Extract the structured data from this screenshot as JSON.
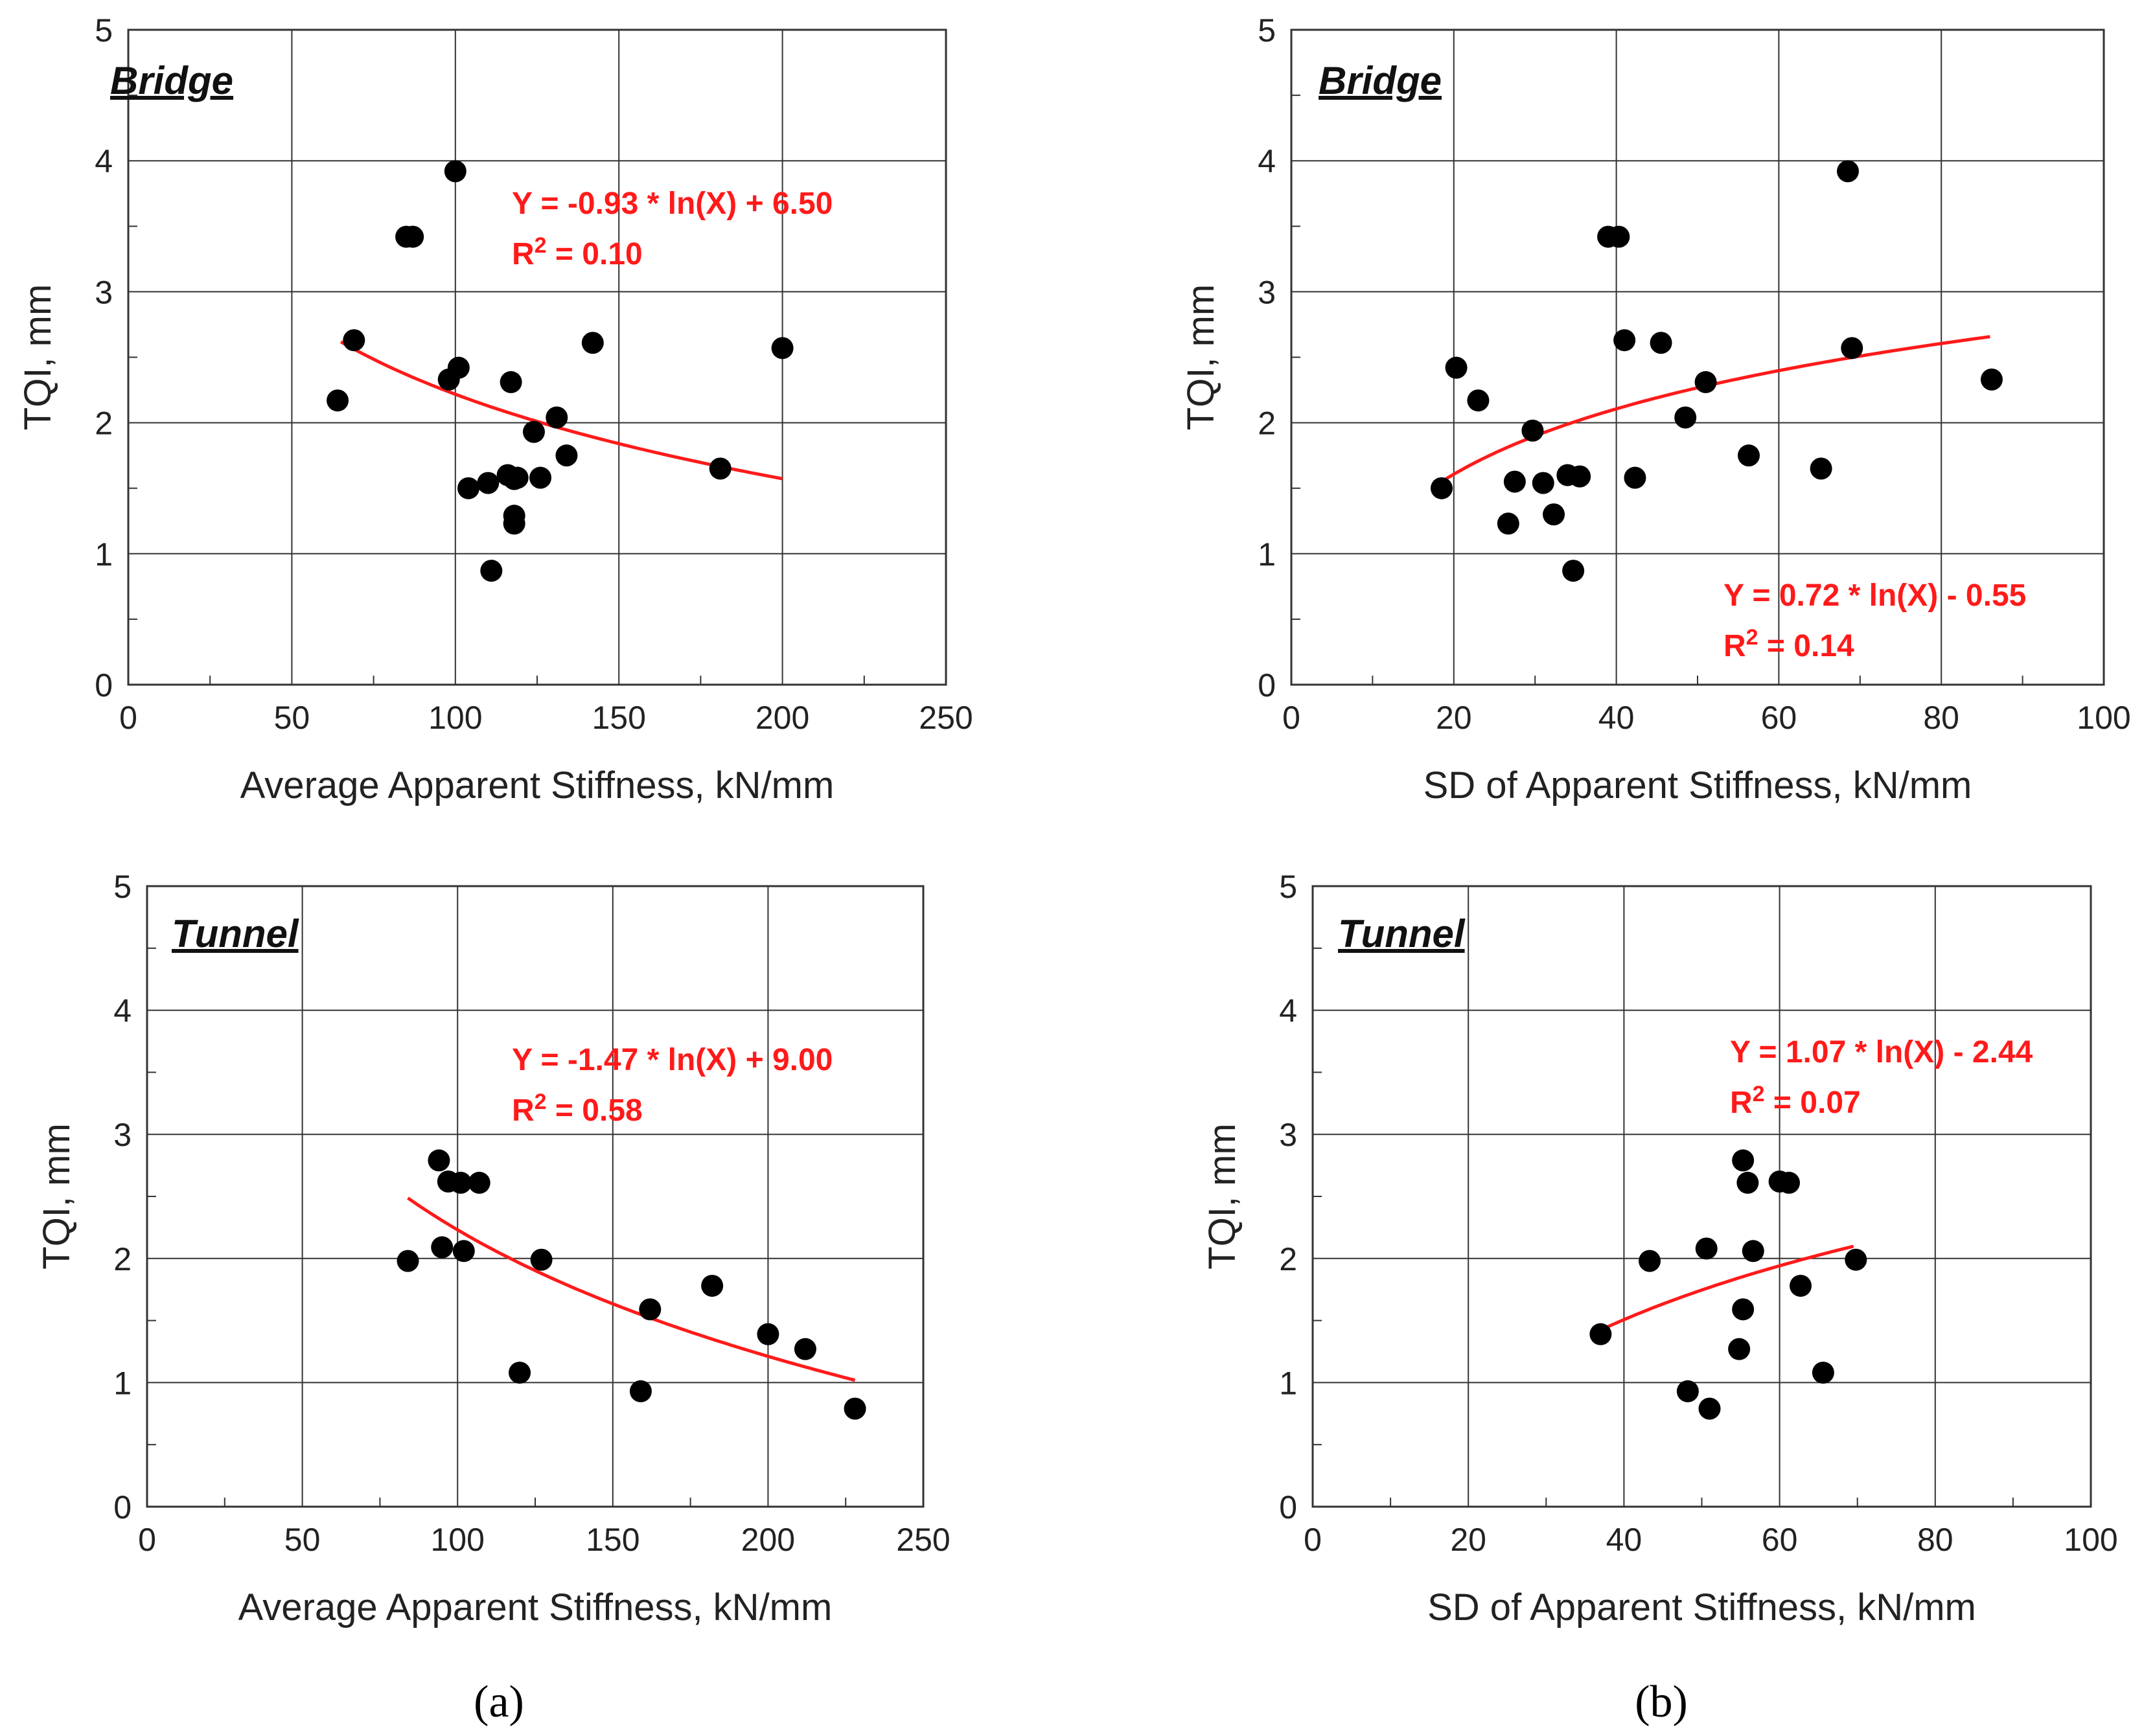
{
  "captions": [
    "(a)",
    "(b)"
  ],
  "chart_data": [
    {
      "type": "scatter",
      "title": "Bridge",
      "xlabel": "Average Apparent Stiffness, kN/mm",
      "ylabel": "TQI, mm",
      "xlim": [
        0,
        250
      ],
      "ylim": [
        0,
        5
      ],
      "xticks": [
        0,
        50,
        100,
        150,
        200,
        250
      ],
      "yticks": [
        0,
        1,
        2,
        3,
        4,
        5
      ],
      "grid": true,
      "points": [
        [
          64,
          2.17
        ],
        [
          69,
          2.63
        ],
        [
          85,
          3.42
        ],
        [
          87,
          3.42
        ],
        [
          98,
          2.33
        ],
        [
          100,
          3.92
        ],
        [
          101,
          2.42
        ],
        [
          104,
          1.5
        ],
        [
          110,
          1.54
        ],
        [
          111,
          0.87
        ],
        [
          116,
          1.6
        ],
        [
          117,
          2.31
        ],
        [
          118,
          1.57
        ],
        [
          118,
          1.29
        ],
        [
          118,
          1.23
        ],
        [
          119,
          1.58
        ],
        [
          124,
          1.93
        ],
        [
          126,
          1.58
        ],
        [
          131,
          2.04
        ],
        [
          134,
          1.75
        ],
        [
          142,
          2.61
        ],
        [
          181,
          1.65
        ],
        [
          200,
          2.57
        ]
      ],
      "fit": {
        "a": -0.93,
        "b": 6.5,
        "x_range": [
          65,
          200
        ]
      },
      "equation": "Y = -0.93 * ln(X) + 6.50",
      "r2_label": "R",
      "r2_sup": "2",
      "r2_value": " = 0.10"
    },
    {
      "type": "scatter",
      "title": "Bridge",
      "xlabel": "SD of Apparent Stiffness, kN/mm",
      "ylabel": "TQI, mm",
      "xlim": [
        0,
        100
      ],
      "ylim": [
        0,
        5
      ],
      "xticks": [
        0,
        20,
        40,
        60,
        80,
        100
      ],
      "yticks": [
        0,
        1,
        2,
        3,
        4,
        5
      ],
      "grid": true,
      "points": [
        [
          18.5,
          1.5
        ],
        [
          20.3,
          2.42
        ],
        [
          23,
          2.17
        ],
        [
          26.7,
          1.23
        ],
        [
          27.5,
          1.55
        ],
        [
          29.7,
          1.94
        ],
        [
          31,
          1.54
        ],
        [
          32.3,
          1.3
        ],
        [
          34,
          1.6
        ],
        [
          34.7,
          0.87
        ],
        [
          35.5,
          1.59
        ],
        [
          39,
          3.42
        ],
        [
          40.3,
          3.42
        ],
        [
          41,
          2.63
        ],
        [
          42.3,
          1.58
        ],
        [
          45.5,
          2.61
        ],
        [
          48.5,
          2.04
        ],
        [
          51,
          2.31
        ],
        [
          56.3,
          1.75
        ],
        [
          65.2,
          1.65
        ],
        [
          68.5,
          3.92
        ],
        [
          69,
          2.57
        ],
        [
          86.2,
          2.33
        ]
      ],
      "fit": {
        "a": 0.72,
        "b": -0.55,
        "x_range": [
          18.5,
          86
        ]
      },
      "equation": "Y = 0.72 * ln(X) - 0.55",
      "r2_label": "R",
      "r2_sup": "2",
      "r2_value": " = 0.14"
    },
    {
      "type": "scatter",
      "title": "Tunnel",
      "xlabel": "Average Apparent Stiffness, kN/mm",
      "ylabel": "TQI, mm",
      "xlim": [
        0,
        250
      ],
      "ylim": [
        0,
        5
      ],
      "xticks": [
        0,
        50,
        100,
        150,
        200,
        250
      ],
      "yticks": [
        0,
        1,
        2,
        3,
        4,
        5
      ],
      "grid": true,
      "points": [
        [
          84,
          1.98
        ],
        [
          94,
          2.79
        ],
        [
          95,
          2.09
        ],
        [
          97,
          2.62
        ],
        [
          101,
          2.61
        ],
        [
          102,
          2.06
        ],
        [
          107,
          2.61
        ],
        [
          120,
          1.08
        ],
        [
          127,
          1.99
        ],
        [
          159,
          0.93
        ],
        [
          162,
          1.59
        ],
        [
          182,
          1.78
        ],
        [
          200,
          1.39
        ],
        [
          212,
          1.27
        ],
        [
          228,
          0.79
        ]
      ],
      "fit": {
        "a": -1.47,
        "b": 9.0,
        "x_range": [
          84,
          228
        ]
      },
      "equation": "Y = -1.47 * ln(X) + 9.00",
      "r2_label": "R",
      "r2_sup": "2",
      "r2_value": " = 0.58"
    },
    {
      "type": "scatter",
      "title": "Tunnel",
      "xlabel": "SD of Apparent Stiffness, kN/mm",
      "ylabel": "TQI, mm",
      "xlim": [
        0,
        100
      ],
      "ylim": [
        0,
        5
      ],
      "xticks": [
        0,
        20,
        40,
        60,
        80,
        100
      ],
      "yticks": [
        0,
        1,
        2,
        3,
        4,
        5
      ],
      "grid": true,
      "points": [
        [
          37,
          1.39
        ],
        [
          43.3,
          1.98
        ],
        [
          48.2,
          0.93
        ],
        [
          50.6,
          2.08
        ],
        [
          51,
          0.79
        ],
        [
          54.8,
          1.27
        ],
        [
          55.3,
          2.79
        ],
        [
          55.3,
          1.59
        ],
        [
          55.9,
          2.61
        ],
        [
          56.6,
          2.06
        ],
        [
          60,
          2.62
        ],
        [
          61.2,
          2.61
        ],
        [
          62.7,
          1.78
        ],
        [
          65.6,
          1.08
        ],
        [
          69.8,
          1.99
        ]
      ],
      "fit": {
        "a": 1.07,
        "b": -2.44,
        "x_range": [
          37,
          69.5
        ]
      },
      "equation": "Y = 1.07 * ln(X) - 2.44",
      "r2_label": "R",
      "r2_sup": "2",
      "r2_value": " = 0.07"
    }
  ]
}
